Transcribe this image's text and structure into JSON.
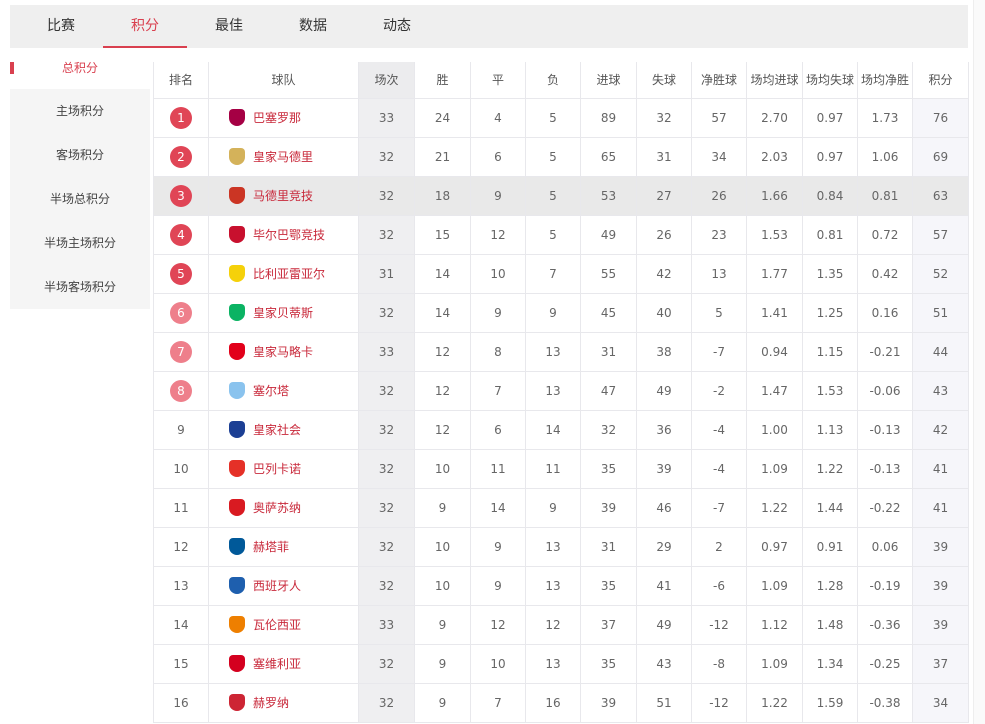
{
  "tabs": [
    {
      "label": "比赛"
    },
    {
      "label": "积分",
      "active": true
    },
    {
      "label": "最佳"
    },
    {
      "label": "数据"
    },
    {
      "label": "动态"
    }
  ],
  "sidebar": {
    "items": [
      {
        "label": "总积分",
        "active": true
      },
      {
        "label": "主场积分"
      },
      {
        "label": "客场积分"
      },
      {
        "label": "半场总积分"
      },
      {
        "label": "半场主场积分"
      },
      {
        "label": "半场客场积分"
      }
    ]
  },
  "colors": {
    "accent": "#d9404f",
    "rank_top": "#e04556",
    "rank_mid": "#ee7f8b"
  },
  "table": {
    "headers": [
      "排名",
      "球队",
      "场次",
      "胜",
      "平",
      "负",
      "进球",
      "失球",
      "净胜球",
      "场均进球",
      "场均失球",
      "场均净胜",
      "积分"
    ],
    "rows": [
      {
        "rank": "1",
        "team": "巴塞罗那",
        "crest": "#a50044",
        "cells": [
          "33",
          "24",
          "4",
          "5",
          "89",
          "32",
          "57",
          "2.70",
          "0.97",
          "1.73",
          "76"
        ]
      },
      {
        "rank": "2",
        "team": "皇家马德里",
        "crest": "#d4b25a",
        "cells": [
          "32",
          "21",
          "6",
          "5",
          "65",
          "31",
          "34",
          "2.03",
          "0.97",
          "1.06",
          "69"
        ]
      },
      {
        "rank": "3",
        "team": "马德里竞技",
        "crest": "#cb3524",
        "cells": [
          "32",
          "18",
          "9",
          "5",
          "53",
          "27",
          "26",
          "1.66",
          "0.84",
          "0.81",
          "63"
        ],
        "highlight": true
      },
      {
        "rank": "4",
        "team": "毕尔巴鄂竞技",
        "crest": "#c8102e",
        "cells": [
          "32",
          "15",
          "12",
          "5",
          "49",
          "26",
          "23",
          "1.53",
          "0.81",
          "0.72",
          "57"
        ]
      },
      {
        "rank": "5",
        "team": "比利亚雷亚尔",
        "crest": "#f5d10a",
        "cells": [
          "31",
          "14",
          "10",
          "7",
          "55",
          "42",
          "13",
          "1.77",
          "1.35",
          "0.42",
          "52"
        ]
      },
      {
        "rank": "6",
        "team": "皇家贝蒂斯",
        "crest": "#0bb363",
        "cells": [
          "32",
          "14",
          "9",
          "9",
          "45",
          "40",
          "5",
          "1.41",
          "1.25",
          "0.16",
          "51"
        ]
      },
      {
        "rank": "7",
        "team": "皇家马略卡",
        "crest": "#e2001a",
        "cells": [
          "33",
          "12",
          "8",
          "13",
          "31",
          "38",
          "-7",
          "0.94",
          "1.15",
          "-0.21",
          "44"
        ]
      },
      {
        "rank": "8",
        "team": "塞尔塔",
        "crest": "#8ac3ee",
        "cells": [
          "32",
          "12",
          "7",
          "13",
          "47",
          "49",
          "-2",
          "1.47",
          "1.53",
          "-0.06",
          "43"
        ]
      },
      {
        "rank": "9",
        "team": "皇家社会",
        "crest": "#1c3f94",
        "cells": [
          "32",
          "12",
          "6",
          "14",
          "32",
          "36",
          "-4",
          "1.00",
          "1.13",
          "-0.13",
          "42"
        ]
      },
      {
        "rank": "10",
        "team": "巴列卡诺",
        "crest": "#e53027",
        "cells": [
          "32",
          "10",
          "11",
          "11",
          "35",
          "39",
          "-4",
          "1.09",
          "1.22",
          "-0.13",
          "41"
        ]
      },
      {
        "rank": "11",
        "team": "奥萨苏纳",
        "crest": "#d91a21",
        "cells": [
          "32",
          "9",
          "14",
          "9",
          "39",
          "46",
          "-7",
          "1.22",
          "1.44",
          "-0.22",
          "41"
        ]
      },
      {
        "rank": "12",
        "team": "赫塔菲",
        "crest": "#005999",
        "cells": [
          "32",
          "10",
          "9",
          "13",
          "31",
          "29",
          "2",
          "0.97",
          "0.91",
          "0.06",
          "39"
        ]
      },
      {
        "rank": "13",
        "team": "西班牙人",
        "crest": "#1e5fae",
        "cells": [
          "32",
          "10",
          "9",
          "13",
          "35",
          "41",
          "-6",
          "1.09",
          "1.28",
          "-0.19",
          "39"
        ]
      },
      {
        "rank": "14",
        "team": "瓦伦西亚",
        "crest": "#ee7f00",
        "cells": [
          "33",
          "9",
          "12",
          "12",
          "37",
          "49",
          "-12",
          "1.12",
          "1.48",
          "-0.36",
          "39"
        ]
      },
      {
        "rank": "15",
        "team": "塞维利亚",
        "crest": "#d4001f",
        "cells": [
          "32",
          "9",
          "10",
          "13",
          "35",
          "43",
          "-8",
          "1.09",
          "1.34",
          "-0.25",
          "37"
        ]
      },
      {
        "rank": "16",
        "team": "赫罗纳",
        "crest": "#cd2534",
        "cells": [
          "32",
          "9",
          "7",
          "16",
          "39",
          "51",
          "-12",
          "1.22",
          "1.59",
          "-0.38",
          "34"
        ]
      }
    ]
  }
}
